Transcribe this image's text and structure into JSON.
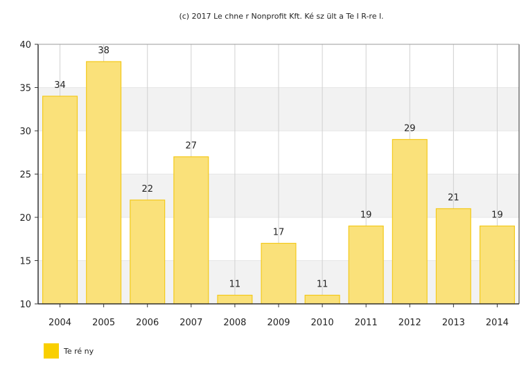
{
  "credit": "(c) 2017 Le chne r Nonprofit Kft. Ké sz ült a Te I R-re l.",
  "colors": {
    "bar_fill": "#fae17a",
    "bar_stroke": "#f3c91a",
    "legend_swatch": "#f9cf00",
    "band": "#f2f2f2",
    "grid": "#d0d0d0",
    "axis": "#333333"
  },
  "chart_data": {
    "type": "bar",
    "categories": [
      "2004",
      "2005",
      "2006",
      "2007",
      "2008",
      "2009",
      "2010",
      "2011",
      "2012",
      "2013",
      "2014"
    ],
    "series": [
      {
        "name": "Te ré ny",
        "values": [
          34,
          38,
          22,
          27,
          11,
          17,
          11,
          19,
          29,
          21,
          19
        ]
      }
    ],
    "ylim": [
      10,
      40
    ],
    "yticks": [
      10,
      15,
      20,
      25,
      30,
      35,
      40
    ],
    "title": "",
    "xlabel": "",
    "ylabel": "",
    "data_labels": true,
    "grid": "vertical lines and alternating horizontal bands",
    "legend": "bottom-left"
  }
}
